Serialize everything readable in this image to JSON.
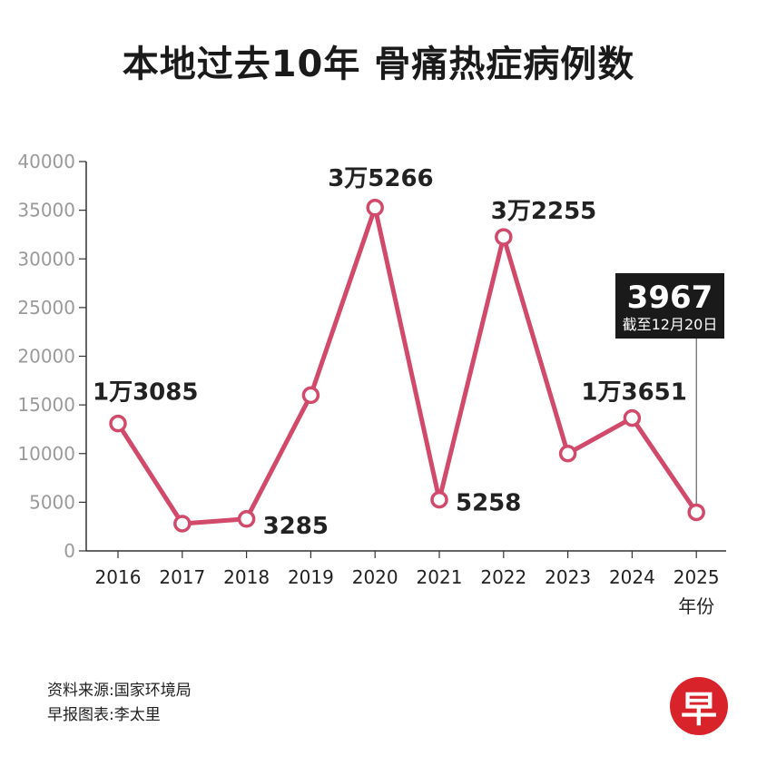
{
  "chart_data": {
    "type": "line",
    "title": "本地过去10年 骨痛热症病例数",
    "xlabel": "年份",
    "ylabel": "",
    "categories": [
      "2016",
      "2017",
      "2018",
      "2019",
      "2020",
      "2021",
      "2022",
      "2023",
      "2024",
      "2025"
    ],
    "values": [
      13085,
      2800,
      3285,
      16000,
      35266,
      5258,
      32255,
      10000,
      13651,
      3967
    ],
    "ylim": [
      0,
      40000
    ],
    "yticks": [
      "0",
      "5000",
      "10000",
      "15000",
      "20000",
      "25000",
      "30000",
      "35000",
      "40000"
    ],
    "data_labels": [
      {
        "index": 0,
        "text": "1万3085"
      },
      {
        "index": 2,
        "text": "3285"
      },
      {
        "index": 4,
        "text": "3万5266"
      },
      {
        "index": 5,
        "text": "5258"
      },
      {
        "index": 6,
        "text": "3万2255"
      },
      {
        "index": 8,
        "text": "1万3651"
      }
    ],
    "callout": {
      "value": "3967",
      "note": "截至12月20日"
    },
    "line_color": "#d24a6b",
    "grid": false
  },
  "footer": {
    "source": "资料来源:国家环境局",
    "credit": "早报图表:李太里"
  },
  "logo": {
    "text": "早",
    "color": "#d8232a"
  }
}
